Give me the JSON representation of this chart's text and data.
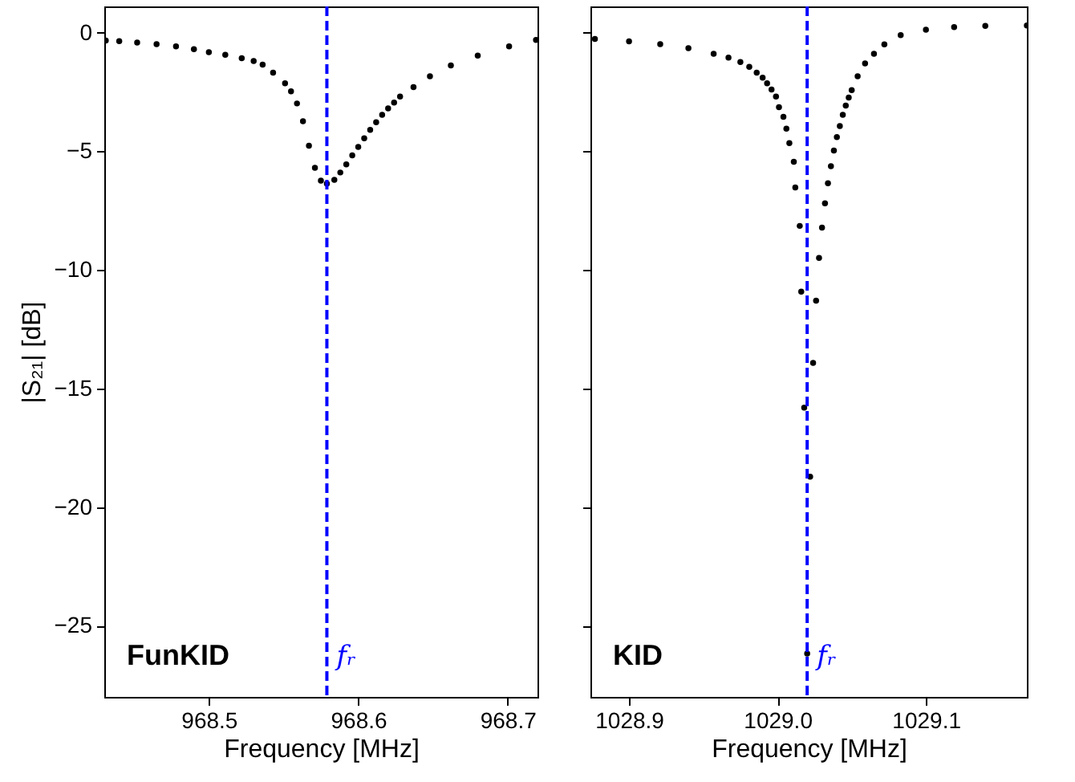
{
  "chart_data": [
    {
      "type": "scatter",
      "xlabel": "Frequency [MHz]",
      "ylabel": "|S₂₁| [dB]",
      "annotations": [
        "FunKID"
      ],
      "marker": "circle",
      "grid": false,
      "xlim": [
        968.43,
        968.72
      ],
      "xticks": [
        968.5,
        968.6,
        968.7
      ],
      "ylim": [
        -28,
        1.1
      ],
      "yticks": [
        0,
        {
          "value": -5,
          "label": "−5"
        },
        {
          "value": -10,
          "label": "−10"
        },
        {
          "value": -15,
          "label": "−15"
        },
        {
          "value": -20,
          "label": "−20"
        },
        {
          "value": -25,
          "label": "−25"
        }
      ],
      "ref_lines": [
        {
          "axis": "x",
          "value": 968.579,
          "label": "fᵣ",
          "color": "#0000ff",
          "line_style": "dashed"
        }
      ],
      "series": [
        {
          "color": "#000000",
          "x": [
            968.431,
            968.44,
            968.452,
            968.465,
            968.478,
            968.49,
            968.5,
            968.511,
            968.522,
            968.53,
            968.536,
            968.543,
            968.551,
            968.555,
            968.559,
            968.563,
            968.567,
            968.571,
            968.575,
            968.579,
            968.584,
            968.588,
            968.592,
            968.596,
            968.6,
            968.604,
            968.608,
            968.612,
            968.616,
            968.62,
            968.624,
            968.628,
            968.637,
            968.648,
            968.662,
            968.68,
            968.701,
            968.719
          ],
          "values": [
            -0.34,
            -0.36,
            -0.42,
            -0.49,
            -0.58,
            -0.7,
            -0.83,
            -0.94,
            -1.08,
            -1.2,
            -1.35,
            -1.69,
            -2.14,
            -2.48,
            -2.99,
            -3.74,
            -4.77,
            -5.7,
            -6.24,
            -6.37,
            -6.21,
            -5.9,
            -5.56,
            -5.18,
            -4.82,
            -4.46,
            -4.1,
            -3.78,
            -3.47,
            -3.2,
            -2.95,
            -2.7,
            -2.3,
            -1.84,
            -1.39,
            -0.97,
            -0.58,
            -0.31
          ]
        }
      ]
    },
    {
      "type": "scatter",
      "xlabel": "Frequency [MHz]",
      "annotations": [
        "KID"
      ],
      "marker": "circle",
      "grid": false,
      "tick_labels": "x",
      "xlim": [
        1028.874,
        1029.168
      ],
      "xticks": [
        1028.9,
        {
          "value": 1029,
          "label": "1029.0"
        },
        1029.1
      ],
      "ylim": [
        -28,
        1.1
      ],
      "yticks": [
        0,
        -5,
        -10,
        -15,
        -20,
        -25
      ],
      "ref_lines": [
        {
          "axis": "x",
          "value": 1029.02,
          "label": "fᵣ",
          "color": "#0000ff",
          "line_style": "dashed"
        }
      ],
      "series": [
        {
          "color": "#000000",
          "x": [
            1028.877,
            1028.9,
            1028.921,
            1028.94,
            1028.957,
            1028.967,
            1028.975,
            1028.981,
            1028.986,
            1028.99,
            1028.993,
            1028.996,
            1028.999,
            1029.001,
            1029.004,
            1029.006,
            1029.008,
            1029.011,
            1029.012,
            1029.015,
            1029.016,
            1029.018,
            1029.02,
            1029.022,
            1029.024,
            1029.026,
            1029.028,
            1029.03,
            1029.032,
            1029.034,
            1029.036,
            1029.038,
            1029.04,
            1029.042,
            1029.044,
            1029.046,
            1029.048,
            1029.05,
            1029.054,
            1029.059,
            1029.065,
            1029.072,
            1029.083,
            1029.1,
            1029.119,
            1029.14,
            1029.168
          ],
          "values": [
            -0.27,
            -0.37,
            -0.49,
            -0.66,
            -0.9,
            -1.06,
            -1.24,
            -1.45,
            -1.69,
            -1.9,
            -2.14,
            -2.4,
            -2.7,
            -3.15,
            -3.55,
            -4.05,
            -4.66,
            -5.45,
            -6.53,
            -8.15,
            -10.92,
            -15.81,
            -26.17,
            -18.72,
            -13.92,
            -11.3,
            -9.5,
            -8.22,
            -7.2,
            -6.35,
            -5.63,
            -4.97,
            -4.41,
            -3.94,
            -3.47,
            -3.08,
            -2.74,
            -2.43,
            -1.84,
            -1.3,
            -0.9,
            -0.5,
            -0.11,
            0.12,
            0.23,
            0.28,
            0.3
          ]
        }
      ]
    }
  ]
}
